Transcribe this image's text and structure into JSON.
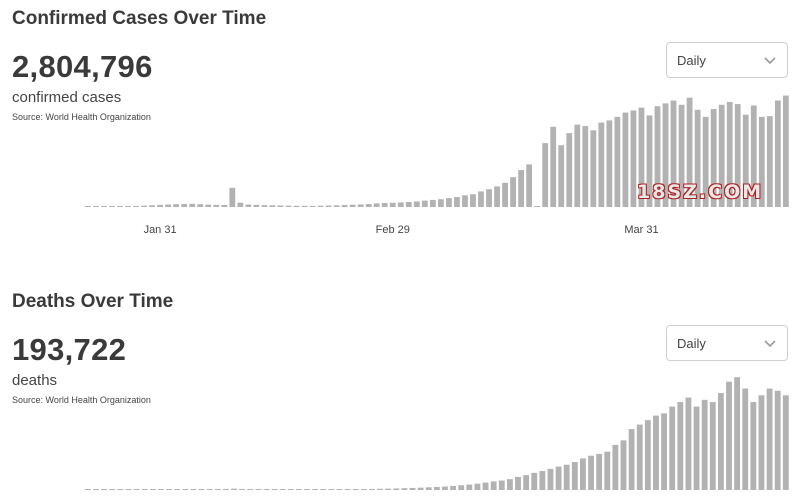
{
  "cases_panel": {
    "title": "Confirmed Cases Over Time",
    "total": "2,804,796",
    "metric_label": "confirmed cases",
    "source": "Source:  World Health Organization",
    "dropdown": {
      "selected": "Daily",
      "icon": "chevron-down-icon"
    }
  },
  "deaths_panel": {
    "title": "Deaths Over Time",
    "total": "193,722",
    "metric_label": "deaths",
    "source": "Source:  World Health Organization",
    "dropdown": {
      "selected": "Daily",
      "icon": "chevron-down-icon"
    }
  },
  "watermark": "18SZ.COM",
  "colors": {
    "bar": "#b2b2b2",
    "text": "#3a3a3a",
    "watermark_stroke": "#b02222"
  },
  "chart_data": [
    {
      "type": "bar",
      "title": "Confirmed Cases Over Time",
      "x_tick_labels": [
        "Jan 31",
        "Feb 29",
        "Mar 31"
      ],
      "x_tick_index": [
        9,
        38,
        69
      ],
      "values": [
        20,
        30,
        40,
        60,
        80,
        110,
        140,
        190,
        240,
        300,
        350,
        400,
        430,
        450,
        400,
        330,
        300,
        280,
        2700,
        600,
        350,
        300,
        260,
        240,
        220,
        190,
        170,
        160,
        150,
        180,
        210,
        240,
        280,
        320,
        360,
        420,
        500,
        560,
        600,
        640,
        700,
        780,
        900,
        1000,
        1100,
        1250,
        1400,
        1650,
        1800,
        2200,
        2500,
        2900,
        3400,
        4200,
        5200,
        6000,
        40,
        9000,
        11300,
        8700,
        10400,
        11600,
        11400,
        10800,
        11900,
        12200,
        12700,
        13300,
        13600,
        14000,
        12900,
        14200,
        14600,
        15000,
        14400,
        15400,
        13700,
        12700,
        13800,
        14400,
        14800,
        14500,
        13000,
        14300,
        12700,
        12800,
        15000,
        15700
      ],
      "ylim": [
        0,
        16200
      ]
    },
    {
      "type": "bar",
      "title": "Deaths Over Time",
      "values": [
        1,
        1,
        1,
        2,
        2,
        3,
        3,
        4,
        5,
        6,
        6,
        7,
        7,
        8,
        8,
        7,
        7,
        6,
        30,
        12,
        9,
        9,
        8,
        8,
        7,
        7,
        8,
        8,
        9,
        10,
        11,
        13,
        15,
        17,
        20,
        23,
        27,
        30,
        34,
        40,
        46,
        52,
        60,
        68,
        78,
        90,
        105,
        120,
        140,
        165,
        190,
        210,
        240,
        290,
        330,
        380,
        420,
        470,
        520,
        560,
        620,
        700,
        760,
        800,
        850,
        1000,
        1100,
        1350,
        1450,
        1550,
        1650,
        1700,
        1850,
        1950,
        2050,
        1850,
        2000,
        1950,
        2150,
        2400,
        2500,
        2250,
        1950,
        2100,
        2250,
        2200,
        2100
      ],
      "ylim": [
        0,
        2550
      ]
    }
  ]
}
